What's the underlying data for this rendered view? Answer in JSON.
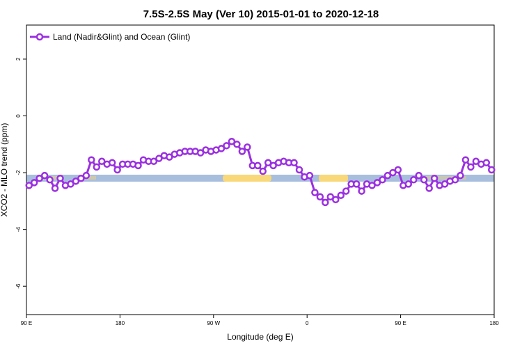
{
  "chart_data": {
    "type": "line",
    "title": "7.5S-2.5S May (Ver 10)   2015-01-01 to 2020-12-18",
    "xlabel": "Longitude (deg E)",
    "ylabel": "XCO2 - MLO trend (ppm)",
    "xlim": [
      90,
      540
    ],
    "ylim": [
      -7,
      3.2
    ],
    "xticks": [
      {
        "value": 90,
        "label": "90 E"
      },
      180,
      {
        "value": 270,
        "label": "90 W"
      },
      {
        "value": 360,
        "label": "0"
      },
      {
        "value": 450,
        "label": "90 E"
      },
      {
        "value": 540,
        "label": "180"
      }
    ],
    "yticks": [
      -6,
      -4,
      -2,
      0,
      2
    ],
    "legend": "top-left",
    "x": [
      92.5,
      97.5,
      102.5,
      107.5,
      112.5,
      117.5,
      122.5,
      127.5,
      132.5,
      137.5,
      142.5,
      147.5,
      152.5,
      157.5,
      162.5,
      167.5,
      172.5,
      177.5,
      182.5,
      187.5,
      192.5,
      197.5,
      202.5,
      207.5,
      212.5,
      217.5,
      222.5,
      227.5,
      232.5,
      237.5,
      242.5,
      247.5,
      252.5,
      257.5,
      262.5,
      267.5,
      272.5,
      277.5,
      282.5,
      287.5,
      292.5,
      297.5,
      302.5,
      307.5,
      312.5,
      317.5,
      322.5,
      327.5,
      332.5,
      337.5,
      342.5,
      347.5,
      352.5,
      357.5,
      362.5,
      367.5,
      372.5,
      377.5,
      382.5,
      387.5,
      392.5,
      397.5,
      402.5,
      407.5,
      412.5,
      417.5,
      422.5,
      427.5,
      432.5,
      437.5,
      442.5,
      447.5,
      452.5,
      457.5,
      462.5,
      467.5,
      472.5,
      477.5,
      482.5,
      487.5,
      492.5,
      497.5,
      502.5,
      507.5,
      512.5,
      517.5,
      522.5,
      527.5,
      532.5,
      537.5
    ],
    "series": [
      {
        "name": "Land (Nadir&Glint) and Ocean (Glint)",
        "color": "#9a30e0",
        "values": [
          -2.45,
          -2.35,
          -2.2,
          -2.1,
          -2.25,
          -2.55,
          -2.2,
          -2.45,
          -2.4,
          -2.3,
          -2.2,
          -2.1,
          -1.55,
          -1.8,
          -1.6,
          -1.7,
          -1.65,
          -1.9,
          -1.7,
          -1.7,
          -1.7,
          -1.75,
          -1.55,
          -1.6,
          -1.6,
          -1.5,
          -1.4,
          -1.45,
          -1.35,
          -1.3,
          -1.25,
          -1.25,
          -1.25,
          -1.3,
          -1.2,
          -1.25,
          -1.2,
          -1.15,
          -1.05,
          -0.9,
          -1.0,
          -1.25,
          -1.1,
          -1.75,
          -1.75,
          -1.95,
          -1.65,
          -1.75,
          -1.65,
          -1.6,
          -1.65,
          -1.65,
          -1.9,
          -2.15,
          -2.1,
          -2.7,
          -2.85,
          -3.05,
          -2.85,
          -2.95,
          -2.8,
          -2.65,
          -2.4,
          -2.4,
          -2.65,
          -2.4,
          -2.45,
          -2.35,
          -2.25,
          -2.1,
          -2.0,
          -1.9,
          -2.45,
          -2.4,
          -2.25,
          -2.1,
          -2.25,
          -2.55,
          -2.2,
          -2.45,
          -2.4,
          -2.3,
          -2.25,
          -2.1,
          -1.55,
          -1.8,
          -1.6,
          -1.7,
          -1.65,
          -1.9
        ]
      }
    ]
  }
}
